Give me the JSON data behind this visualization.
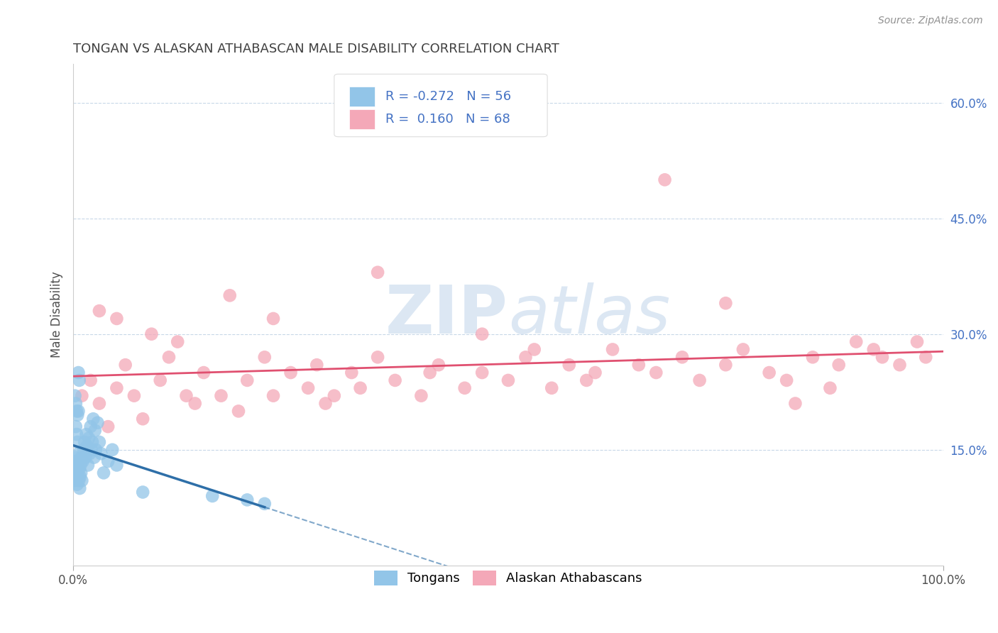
{
  "title": "TONGAN VS ALASKAN ATHABASCAN MALE DISABILITY CORRELATION CHART",
  "source": "Source: ZipAtlas.com",
  "ylabel": "Male Disability",
  "x_min": 0.0,
  "x_max": 100.0,
  "y_min": 0.0,
  "y_max": 65.0,
  "y_ticks": [
    15.0,
    30.0,
    45.0,
    60.0
  ],
  "legend_tongan_label": "Tongans",
  "legend_athabascan_label": "Alaskan Athabascans",
  "R_tongan": -0.272,
  "N_tongan": 56,
  "R_athabascan": 0.16,
  "N_athabascan": 68,
  "tongan_color": "#92C5E8",
  "athabascan_color": "#F4A8B8",
  "tongan_line_color": "#2E6FA8",
  "athabascan_line_color": "#E05070",
  "background_color": "#FFFFFF",
  "watermark_color": "#C5D8EC",
  "title_color": "#404040",
  "right_axis_color": "#4472C4",
  "grid_color": "#C8D8E8",
  "tongan_x": [
    0.1,
    0.15,
    0.2,
    0.25,
    0.3,
    0.35,
    0.4,
    0.45,
    0.5,
    0.55,
    0.6,
    0.65,
    0.7,
    0.75,
    0.8,
    0.85,
    0.9,
    0.95,
    1.0,
    1.1,
    1.2,
    1.3,
    1.4,
    1.5,
    1.6,
    1.7,
    1.8,
    1.9,
    2.0,
    2.1,
    2.2,
    2.3,
    2.4,
    2.5,
    2.6,
    2.8,
    3.0,
    3.2,
    3.5,
    4.0,
    4.5,
    5.0,
    0.2,
    0.3,
    0.4,
    0.5,
    0.6,
    0.7,
    8.0,
    16.0,
    20.0,
    22.0,
    0.3,
    0.4,
    0.5,
    0.6
  ],
  "tongan_y": [
    13.5,
    12.0,
    11.0,
    14.0,
    13.0,
    12.5,
    11.5,
    10.5,
    12.0,
    13.0,
    14.5,
    11.0,
    12.5,
    10.0,
    11.5,
    13.0,
    12.0,
    14.0,
    11.0,
    13.5,
    15.0,
    16.0,
    14.0,
    17.0,
    15.5,
    13.0,
    16.5,
    14.5,
    18.0,
    15.0,
    16.0,
    19.0,
    14.0,
    17.5,
    15.0,
    18.5,
    16.0,
    14.5,
    12.0,
    13.5,
    15.0,
    13.0,
    22.0,
    21.0,
    20.0,
    19.5,
    25.0,
    24.0,
    9.5,
    9.0,
    8.5,
    8.0,
    18.0,
    17.0,
    16.0,
    20.0
  ],
  "athabascan_x": [
    1.0,
    2.0,
    3.0,
    4.0,
    5.0,
    6.0,
    7.0,
    8.0,
    10.0,
    11.0,
    13.0,
    14.0,
    15.0,
    17.0,
    19.0,
    20.0,
    22.0,
    23.0,
    25.0,
    27.0,
    28.0,
    30.0,
    32.0,
    33.0,
    35.0,
    37.0,
    40.0,
    42.0,
    45.0,
    47.0,
    50.0,
    52.0,
    55.0,
    57.0,
    60.0,
    62.0,
    65.0,
    67.0,
    70.0,
    72.0,
    75.0,
    77.0,
    80.0,
    82.0,
    85.0,
    87.0,
    88.0,
    90.0,
    92.0,
    93.0,
    95.0,
    97.0,
    98.0,
    3.0,
    5.0,
    9.0,
    12.0,
    18.0,
    23.0,
    29.0,
    35.0,
    41.0,
    47.0,
    53.0,
    59.0,
    68.0,
    75.0,
    83.0
  ],
  "athabascan_y": [
    22.0,
    24.0,
    21.0,
    18.0,
    23.0,
    26.0,
    22.0,
    19.0,
    24.0,
    27.0,
    22.0,
    21.0,
    25.0,
    22.0,
    20.0,
    24.0,
    27.0,
    22.0,
    25.0,
    23.0,
    26.0,
    22.0,
    25.0,
    23.0,
    27.0,
    24.0,
    22.0,
    26.0,
    23.0,
    25.0,
    24.0,
    27.0,
    23.0,
    26.0,
    25.0,
    28.0,
    26.0,
    25.0,
    27.0,
    24.0,
    26.0,
    28.0,
    25.0,
    24.0,
    27.0,
    23.0,
    26.0,
    29.0,
    28.0,
    27.0,
    26.0,
    29.0,
    27.0,
    33.0,
    32.0,
    30.0,
    29.0,
    35.0,
    32.0,
    21.0,
    38.0,
    25.0,
    30.0,
    28.0,
    24.0,
    50.0,
    34.0,
    21.0
  ]
}
